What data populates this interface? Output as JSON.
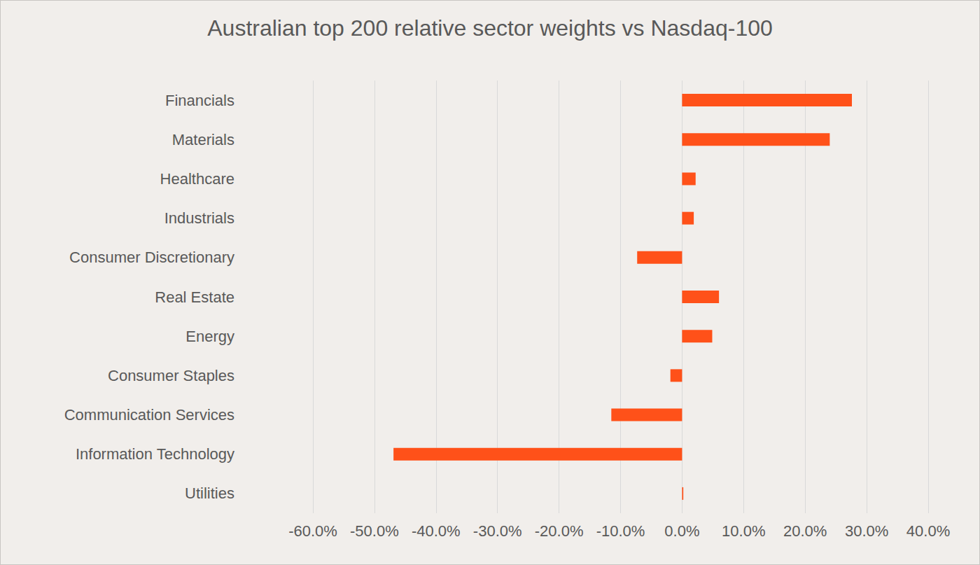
{
  "chart_data": {
    "type": "bar",
    "orientation": "horizontal",
    "title": "Australian top 200 relative sector weights vs Nasdaq-100",
    "categories": [
      "Financials",
      "Materials",
      "Healthcare",
      "Industrials",
      "Consumer Discretionary",
      "Real Estate",
      "Energy",
      "Consumer Staples",
      "Communication Services",
      "Information Technology",
      "Utilities"
    ],
    "values": [
      27.6,
      24.0,
      2.2,
      1.9,
      -7.3,
      6.0,
      4.9,
      -1.9,
      -11.5,
      -46.9,
      0.2
    ],
    "color": "#ff5119",
    "xlim": [
      -60,
      40
    ],
    "xticks": [
      {
        "value": -60,
        "label": "-60.0%"
      },
      {
        "value": -50,
        "label": "-50.0%"
      },
      {
        "value": -40,
        "label": "-40.0%"
      },
      {
        "value": -30,
        "label": "-30.0%"
      },
      {
        "value": -20,
        "label": "-20.0%"
      },
      {
        "value": -10,
        "label": "-10.0%"
      },
      {
        "value": 0,
        "label": "0.0%"
      },
      {
        "value": 10,
        "label": "10.0%"
      },
      {
        "value": 20,
        "label": "20.0%"
      },
      {
        "value": 30,
        "label": "30.0%"
      },
      {
        "value": 40,
        "label": "40.0%"
      }
    ],
    "grid": true
  }
}
